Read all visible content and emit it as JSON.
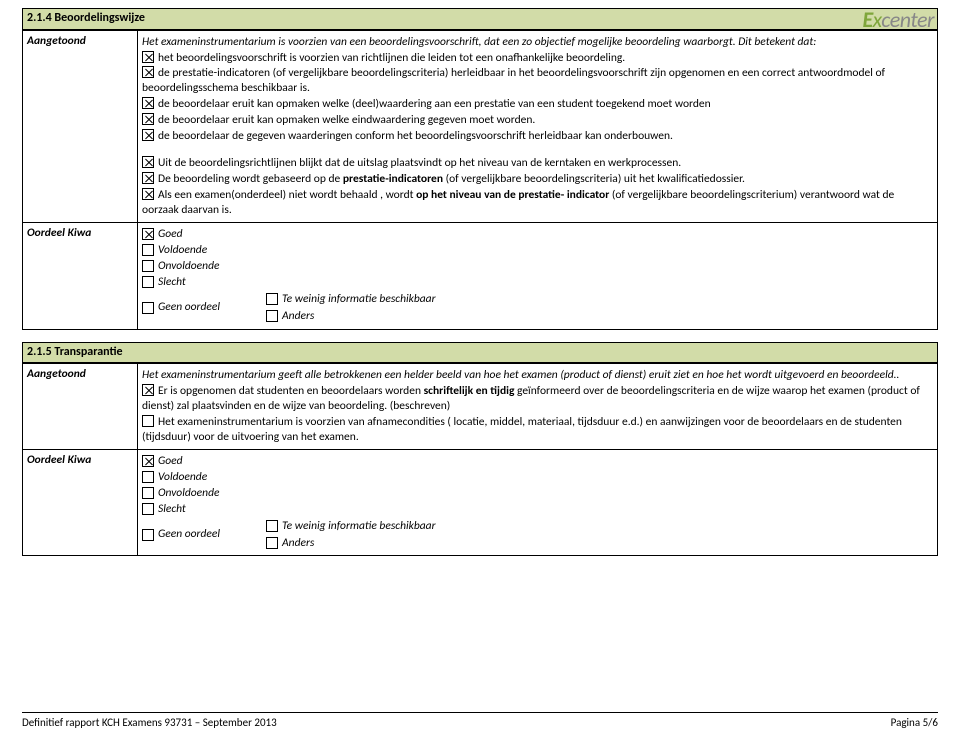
{
  "logo": {
    "text": "Excenter",
    "color": "#7fa63b"
  },
  "section1": {
    "title": "2.1.4 Beoordelingswijze",
    "row_label": "Aangetoond",
    "intro": "Het exameninstrumentarium is voorzien van een beoordelingsvoorschrift, dat een zo objectief mogelijke beoordeling waarborgt. Dit betekent dat:",
    "items": [
      {
        "checked": true,
        "text": "het beoordelingsvoorschrift is voorzien van richtlijnen die leiden tot een onafhankelijke beoordeling."
      },
      {
        "checked": true,
        "text": "de prestatie-indicatoren (of vergelijkbare beoordelingscriteria) herleidbaar in het beoordelingsvoorschrift zijn opgenomen en een correct antwoordmodel of beoordelingsschema beschikbaar is."
      },
      {
        "checked": true,
        "text": "de beoordelaar eruit kan opmaken welke (deel)waardering aan een prestatie van een student toegekend moet worden"
      },
      {
        "checked": true,
        "text": "de beoordelaar eruit kan opmaken welke eindwaardering gegeven moet worden."
      },
      {
        "checked": true,
        "text": "de beoordelaar de gegeven waarderingen conform het beoordelingsvoorschrift herleidbaar kan onderbouwen."
      }
    ],
    "para2": [
      {
        "checked": true,
        "html": "Uit de beoordelingsrichtlijnen blijkt dat de uitslag plaatsvindt op het niveau van de kerntaken en werkprocessen."
      },
      {
        "checked": true,
        "html": "De beoordeling wordt gebaseerd op de <b>prestatie-indicatoren</b> (of vergelijkbare beoordelingscriteria) uit het kwalificatiedossier."
      },
      {
        "checked": true,
        "html": "Als een examen(onderdeel) niet wordt behaald , wordt <b>op het niveau van de prestatie- indicator</b> (of vergelijkbare beoordelingscriterium)  verantwoord wat de oorzaak daarvan is."
      }
    ]
  },
  "oordeel": {
    "label": "Oordeel Kiwa",
    "options": [
      {
        "checked": true,
        "text": "Goed"
      },
      {
        "checked": false,
        "text": "Voldoende"
      },
      {
        "checked": false,
        "text": "Onvoldoende"
      },
      {
        "checked": false,
        "text": "Slecht"
      }
    ],
    "geen": {
      "checked": false,
      "text": "Geen oordeel"
    },
    "extra": [
      {
        "checked": false,
        "text": "Te weinig informatie beschikbaar"
      },
      {
        "checked": false,
        "text": "Anders"
      }
    ]
  },
  "section2": {
    "title": "2.1.5 Transparantie",
    "row_label": "Aangetoond",
    "intro": "Het exameninstrumentarium geeft alle betrokkenen  een helder beeld van hoe het examen (product of dienst)  eruit ziet en hoe het wordt uitgevoerd en beoordeeld..",
    "items": [
      {
        "checked": true,
        "html": "Er is opgenomen dat studenten en beoordelaars worden <b>schriftelijk en tijdig</b> geïnformeerd over de beoordelingscriteria en de wijze waarop het examen (product of dienst) zal plaatsvinden en de wijze van  beoordeling. (beschreven)"
      },
      {
        "checked": false,
        "html": "Het exameninstrumentarium is voorzien van afnamecondities ( locatie, middel, materiaal, tijdsduur e.d.) en aanwijzingen voor de beoordelaars en de studenten (tijdsduur) voor de  uitvoering van het examen."
      }
    ]
  },
  "footer": {
    "left": "Definitief rapport KCH Examens 93731 – September 2013",
    "right": "Pagina 5/6"
  }
}
